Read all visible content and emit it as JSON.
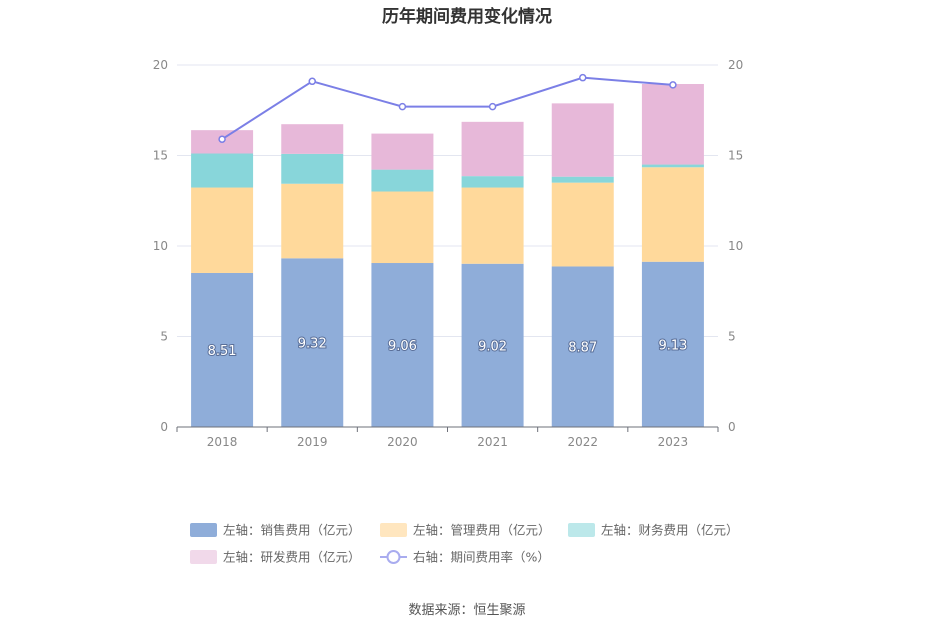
{
  "chart_data": {
    "type": "bar",
    "stacked": true,
    "title": "历年期间费用变化情况",
    "categories": [
      "2018",
      "2019",
      "2020",
      "2021",
      "2022",
      "2023"
    ],
    "series": [
      {
        "name": "左轴：销售费用（亿元）",
        "axis": "left",
        "type": "bar",
        "color": "#8fadd9",
        "values": [
          8.51,
          9.32,
          9.06,
          9.02,
          8.87,
          9.13
        ],
        "show_labels": true
      },
      {
        "name": "左轴：管理费用（亿元）",
        "axis": "left",
        "type": "bar",
        "color": "#ffd99b",
        "values": [
          4.72,
          4.12,
          3.95,
          4.21,
          4.63,
          5.22
        ]
      },
      {
        "name": "左轴：财务费用（亿元）",
        "axis": "left",
        "type": "bar",
        "color": "#88d6da",
        "values": [
          1.88,
          1.65,
          1.21,
          0.63,
          0.33,
          0.15
        ]
      },
      {
        "name": "左轴：研发费用（亿元）",
        "axis": "left",
        "type": "bar",
        "color": "#e7b8d9",
        "values": [
          1.29,
          1.64,
          1.99,
          3.0,
          4.05,
          4.45
        ]
      },
      {
        "name": "右轴：期间费用率（%）",
        "axis": "right",
        "type": "line",
        "color": "#7b7fe6",
        "values": [
          15.9,
          19.1,
          17.7,
          17.7,
          19.3,
          18.9
        ]
      }
    ],
    "y_left": {
      "min": 0,
      "max": 20,
      "ticks": [
        0,
        5,
        10,
        15,
        20
      ]
    },
    "y_right": {
      "min": 0,
      "max": 20,
      "ticks": [
        0,
        5,
        10,
        15,
        20
      ]
    },
    "legend_position": "bottom",
    "grid": true,
    "legend_colors": [
      "#8fadd9",
      "#ffe6bf",
      "#bce8ea",
      "#f1d9ea",
      "#a9acef"
    ]
  },
  "source_text": "数据来源：恒生聚源"
}
